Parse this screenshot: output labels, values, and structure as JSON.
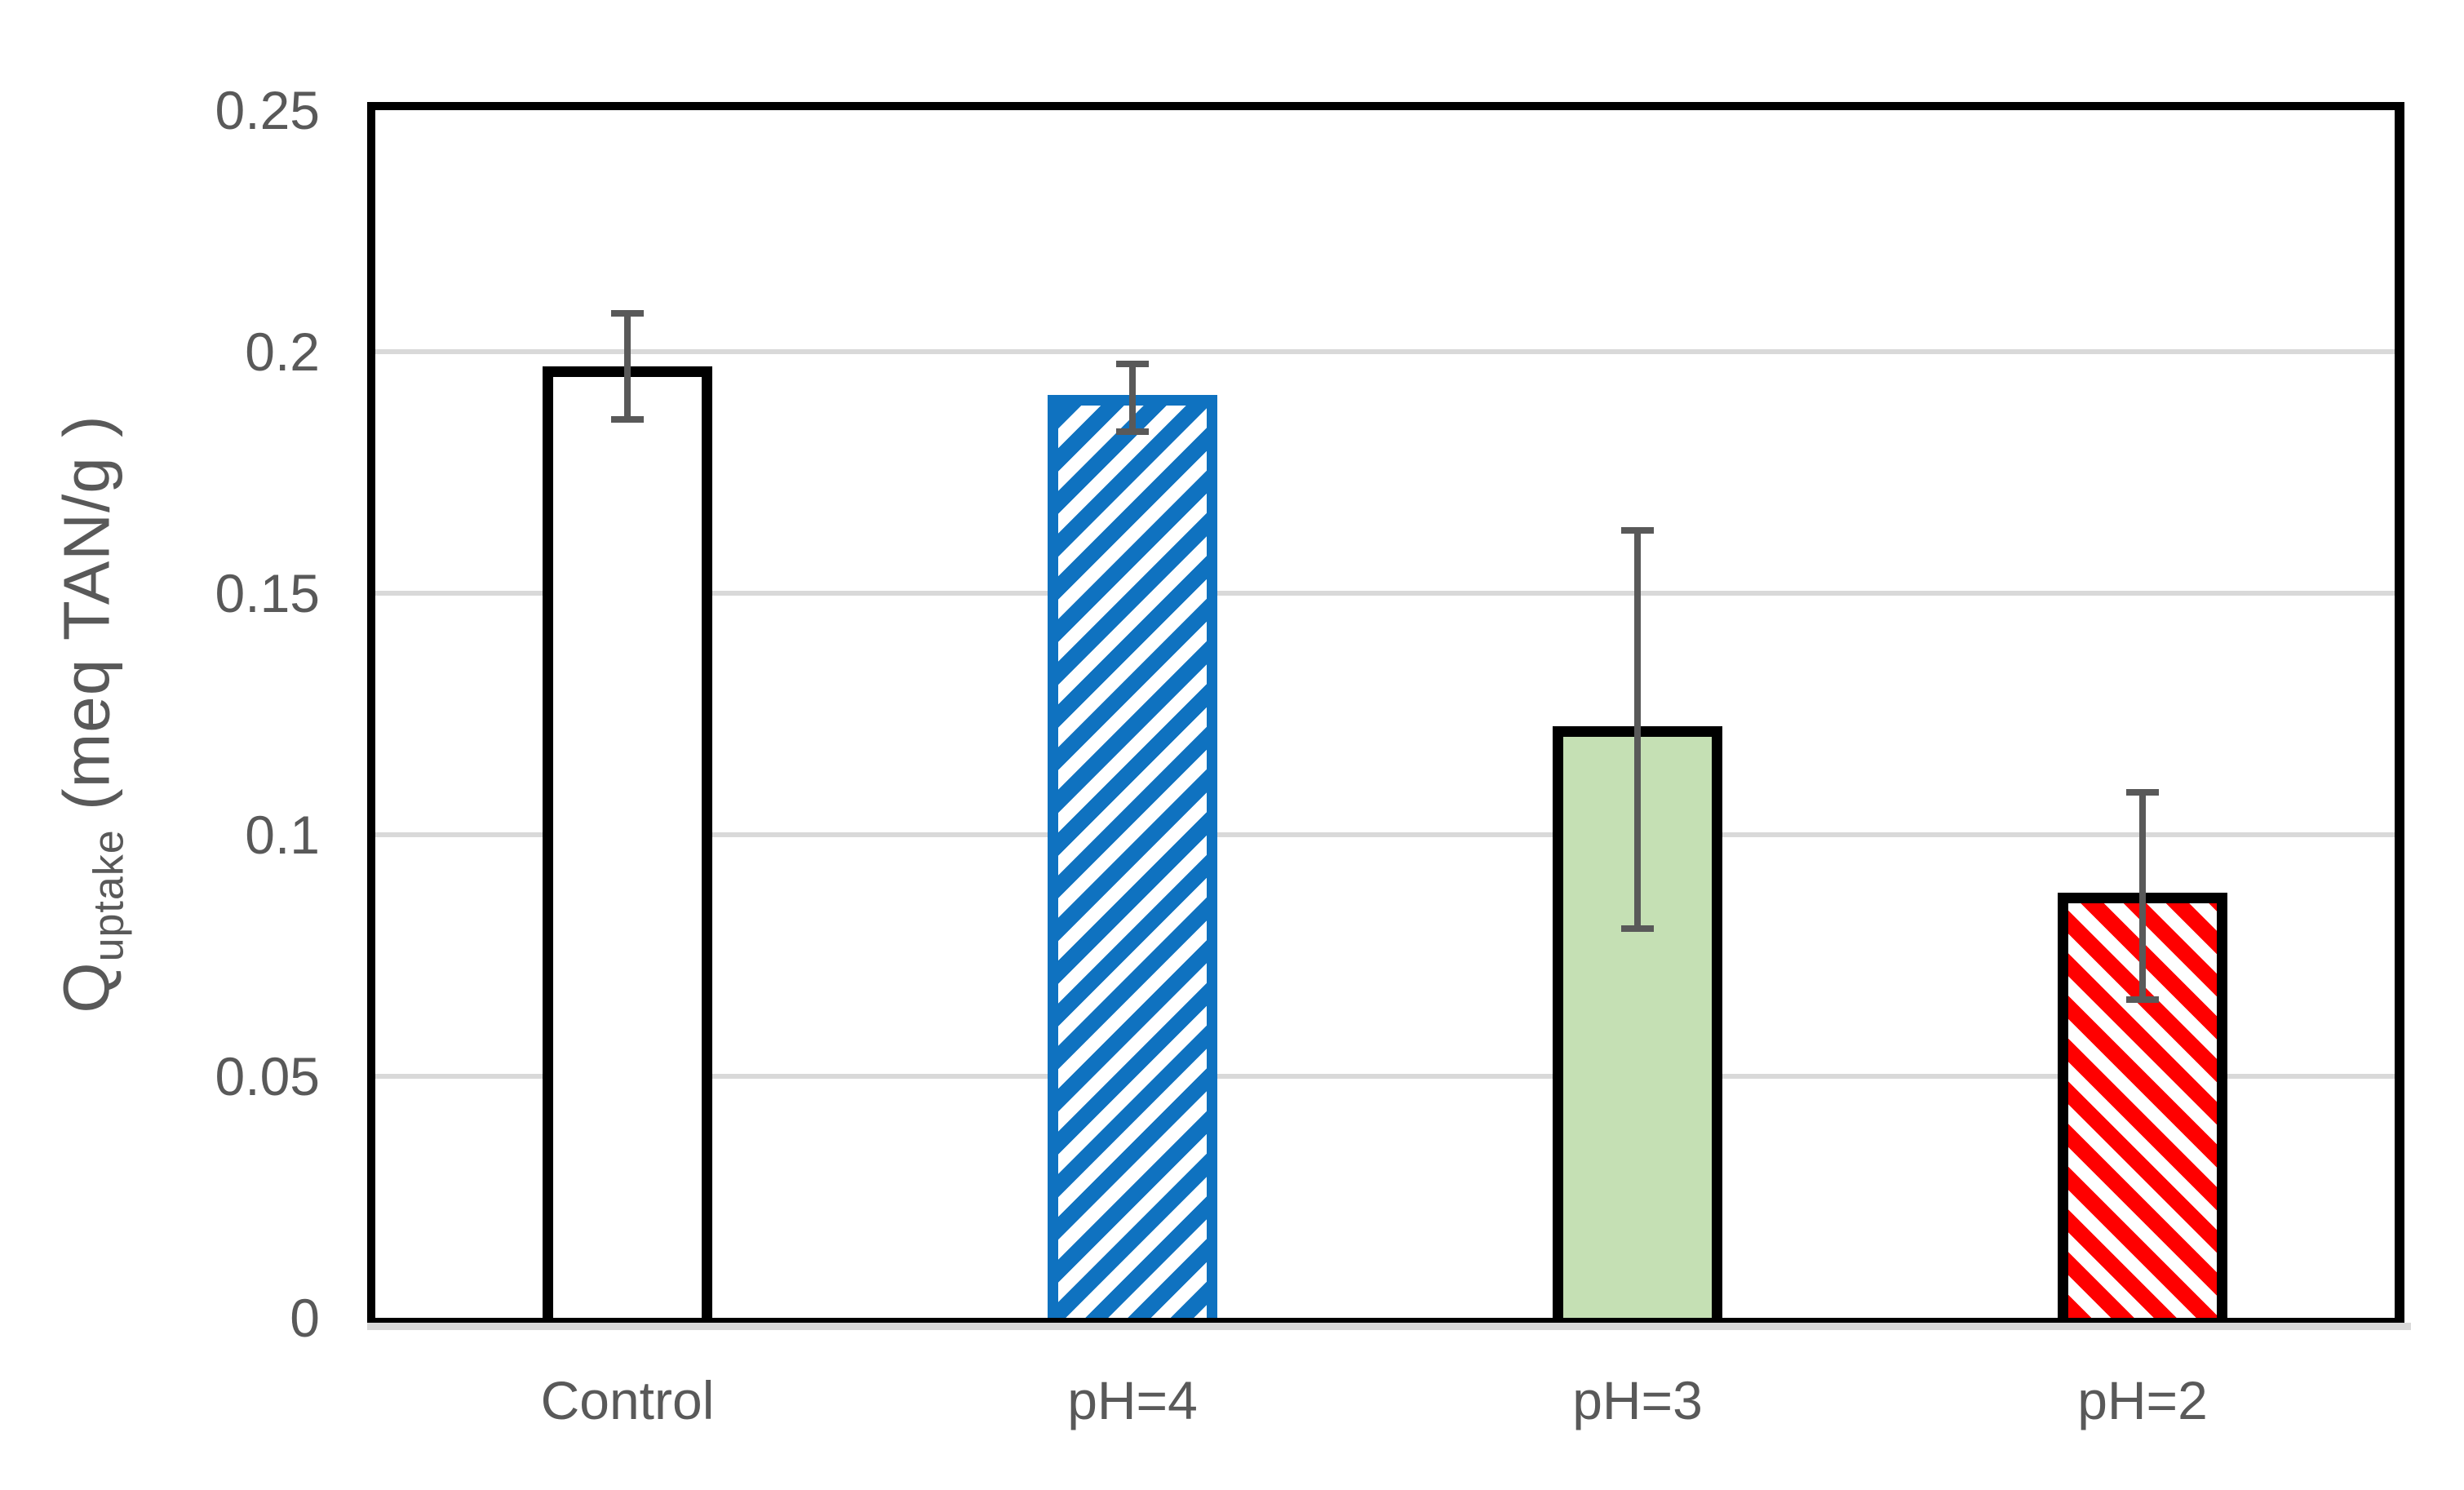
{
  "chart_data": {
    "type": "bar",
    "title": "",
    "ylabel_main": "Q",
    "ylabel_sub": "uptake",
    "ylabel_rest": " (meq TAN/g )",
    "xlabel": "",
    "categories": [
      "Control",
      "pH=4",
      "pH=3",
      "pH=2"
    ],
    "values": [
      0.197,
      0.191,
      0.1225,
      0.088
    ],
    "error_upper": [
      0.208,
      0.1975,
      0.163,
      0.1088
    ],
    "error_lower": [
      0.186,
      0.1835,
      0.0805,
      0.0658
    ],
    "ylim": [
      0,
      0.25
    ],
    "ytick_labels": [
      "0.25",
      "0.2",
      "0.15",
      "0.1",
      "0.05",
      "0"
    ],
    "ytick_values": [
      0.25,
      0.2,
      0.15,
      0.1,
      0.05,
      0
    ],
    "grid": true,
    "legend_position": "none",
    "bar_styles": [
      {
        "fill": "#FFFFFF",
        "border": "#000000",
        "pattern": "none",
        "pattern_color": null
      },
      {
        "fill": "#FFFFFF",
        "border": "#0F72C0",
        "pattern": "diagonal-up",
        "pattern_color": "#0F72C0"
      },
      {
        "fill": "#C5E0B4",
        "border": "#000000",
        "pattern": "none",
        "pattern_color": null
      },
      {
        "fill": "#FFFFFF",
        "border": "#000000",
        "pattern": "diagonal-down",
        "pattern_color": "#FF0000"
      }
    ],
    "colors": {
      "text": "#595959",
      "gridline": "#D9D9D9",
      "axis_line": "#D9D9D9",
      "error_bar": "#595959",
      "plot_border": "#000000",
      "background": "#FFFFFF"
    }
  }
}
